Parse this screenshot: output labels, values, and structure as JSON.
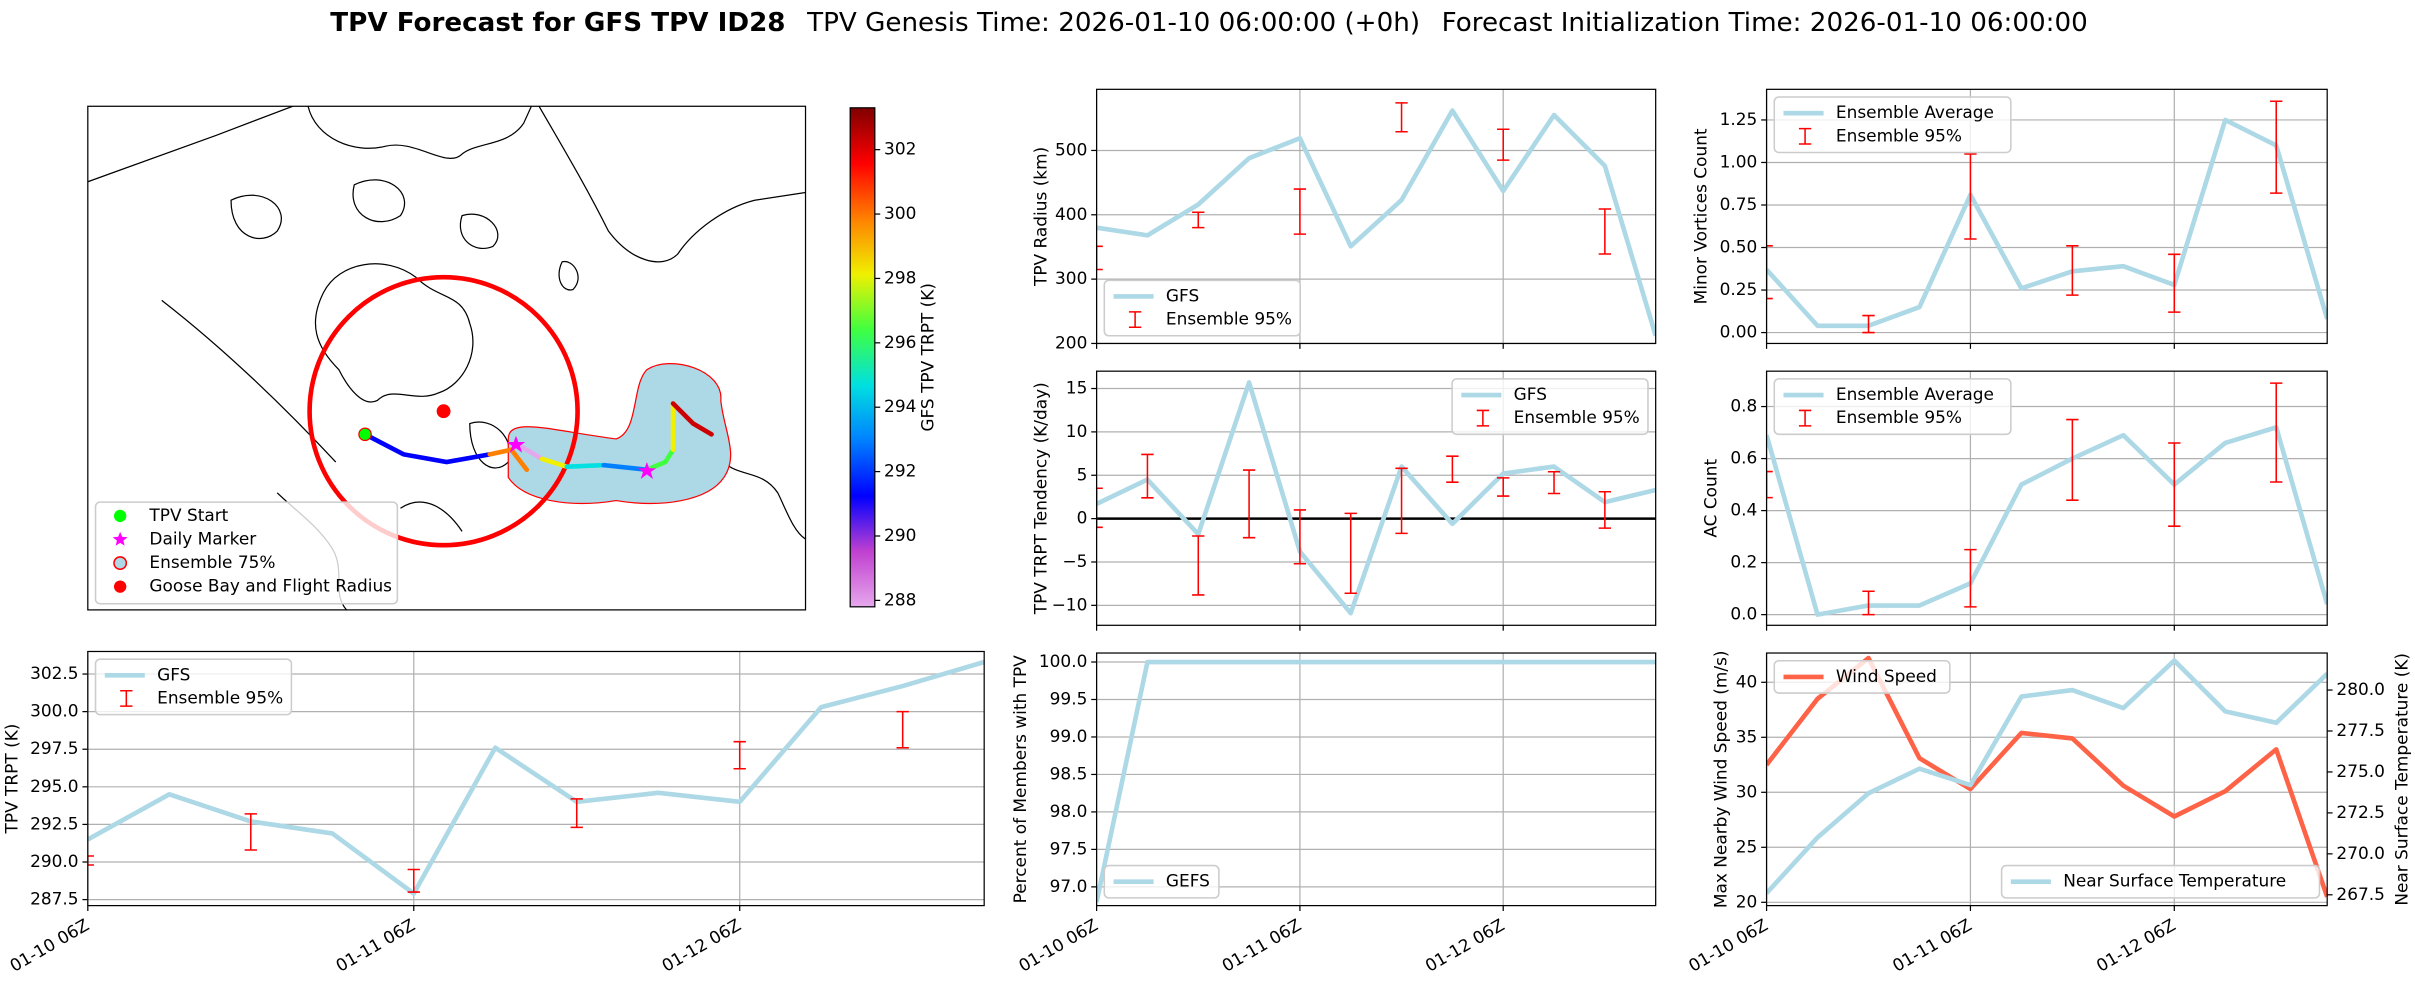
{
  "suptitle": {
    "main": "TPV Forecast for GFS TPV ID28",
    "genesis": "TPV Genesis Time: 2026-01-10 06:00:00 (+0h)",
    "init": "Forecast Initialization Time: 2026-01-10 06:00:00"
  },
  "chart_data": [
    {
      "type": "map",
      "legend": [
        {
          "name": "TPV Start",
          "color": "#00ff00",
          "marker": "circle"
        },
        {
          "name": "Daily Marker",
          "color": "#ff00ff",
          "marker": "star"
        },
        {
          "name": "Ensemble 75%",
          "color": "#add8e6",
          "edge": "#ff0000",
          "marker": "circle"
        },
        {
          "name": "Goose Bay and Flight Radius",
          "color": "#ff0000",
          "marker": "circle"
        }
      ],
      "colorbar": {
        "label": "GFS TPV TRPT (K)",
        "lim": [
          287.8,
          303.3
        ],
        "ticks": [
          288,
          290,
          292,
          294,
          296,
          298,
          300,
          302
        ],
        "colors": [
          "#e6a8ec",
          "#c040d0",
          "#0000ff",
          "#0080ff",
          "#00e0e0",
          "#40ff40",
          "#f0f000",
          "#ff8000",
          "#ff0000",
          "#800000"
        ]
      }
    },
    {
      "type": "line",
      "ylabel": "TPV TRPT (K)",
      "xlim": [
        0,
        66
      ],
      "ylim": [
        287.1,
        304.0
      ],
      "yticks": [
        {
          "value": 287.5,
          "label": "287.5"
        },
        {
          "value": 290,
          "label": "290.0"
        },
        {
          "value": 292.5,
          "label": "292.5"
        },
        {
          "value": 295,
          "label": "295.0"
        },
        {
          "value": 297.5,
          "label": "297.5"
        },
        {
          "value": 300,
          "label": "300.0"
        },
        {
          "value": 302.5,
          "label": "302.5"
        }
      ],
      "xticks": [
        {
          "value": 0,
          "label": "01-10 06Z"
        },
        {
          "value": 24,
          "label": "01-11 06Z"
        },
        {
          "value": 48,
          "label": "01-12 06Z"
        }
      ],
      "grid": true,
      "legend": "upper left",
      "x": [
        0,
        6,
        12,
        18,
        24,
        30,
        36,
        42,
        48,
        54,
        60,
        66
      ],
      "series": [
        {
          "name": "GFS",
          "type": "line",
          "color": "#add8e6",
          "values": [
            291.5,
            294.5,
            292.7,
            291.9,
            287.9,
            297.6,
            294.0,
            294.6,
            294.0,
            300.3,
            301.7,
            303.3
          ]
        },
        {
          "name": "Ensemble 95%",
          "type": "errorbar",
          "color": "#ff0000",
          "x": [
            0,
            12,
            24,
            36,
            48,
            60
          ],
          "lower": [
            289.8,
            290.8,
            288.0,
            292.3,
            296.2,
            297.6
          ],
          "upper": [
            290.4,
            293.2,
            289.5,
            294.2,
            298.0,
            300.0
          ]
        }
      ]
    },
    {
      "type": "line",
      "ylabel": "TPV Radius (km)",
      "xlim": [
        0,
        66
      ],
      "ylim": [
        200,
        595
      ],
      "yticks": [
        200,
        300,
        400,
        500
      ],
      "xticks": [
        0,
        24,
        48
      ],
      "grid": true,
      "legend": "lower left",
      "x": [
        0,
        6,
        12,
        18,
        24,
        30,
        36,
        42,
        48,
        54,
        60,
        66
      ],
      "series": [
        {
          "name": "GFS",
          "type": "line",
          "color": "#add8e6",
          "values": [
            380,
            368,
            416,
            488,
            519,
            351,
            423,
            562,
            437,
            555,
            476,
            212
          ]
        },
        {
          "name": "Ensemble 95%",
          "type": "errorbar",
          "color": "#ff0000",
          "x": [
            0,
            12,
            24,
            36,
            48,
            60
          ],
          "lower": [
            315,
            380,
            370,
            529,
            485,
            339
          ],
          "upper": [
            351,
            404,
            440,
            574,
            533,
            409
          ]
        }
      ]
    },
    {
      "type": "line",
      "ylabel": "TPV TRPT Tendency (K/day)",
      "xlim": [
        0,
        66
      ],
      "ylim": [
        -12.3,
        17
      ],
      "yticks": [
        {
          "value": -10,
          "label": "−10"
        },
        {
          "value": -5,
          "label": "−5"
        },
        0,
        5,
        10,
        15
      ],
      "xticks": [
        0,
        24,
        48
      ],
      "hline": 0,
      "grid": true,
      "legend": "upper right",
      "x": [
        0,
        6,
        12,
        18,
        24,
        30,
        36,
        42,
        48,
        54,
        60,
        66
      ],
      "series": [
        {
          "name": "GFS",
          "type": "line",
          "color": "#add8e6",
          "values": [
            1.7,
            4.5,
            -1.8,
            15.7,
            -3.8,
            -10.9,
            6.0,
            -0.6,
            5.2,
            6.0,
            1.9,
            3.3
          ]
        },
        {
          "name": "Ensemble 95%",
          "type": "errorbar",
          "color": "#ff0000",
          "x": [
            0,
            6,
            12,
            18,
            24,
            30,
            36,
            42,
            48,
            54,
            60
          ],
          "lower": [
            -1.0,
            2.4,
            -8.8,
            -2.2,
            -5.2,
            -8.6,
            -1.7,
            4.2,
            2.6,
            2.9,
            -1.1
          ],
          "upper": [
            3.5,
            7.4,
            -2.0,
            5.6,
            1.0,
            0.6,
            5.8,
            7.2,
            4.7,
            5.4,
            3.1
          ]
        }
      ]
    },
    {
      "type": "line",
      "ylabel": "Percent of Members with TPV",
      "xlim": [
        0,
        66
      ],
      "ylim": [
        96.75,
        100.12
      ],
      "yticks": [
        {
          "value": 97,
          "label": "97.0"
        },
        {
          "value": 97.5,
          "label": "97.5"
        },
        {
          "value": 98,
          "label": "98.0"
        },
        {
          "value": 98.5,
          "label": "98.5"
        },
        {
          "value": 99,
          "label": "99.0"
        },
        {
          "value": 99.5,
          "label": "99.5"
        },
        {
          "value": 100,
          "label": "100.0"
        }
      ],
      "xticks": [
        {
          "value": 0,
          "label": "01-10 06Z"
        },
        {
          "value": 24,
          "label": "01-11 06Z"
        },
        {
          "value": 48,
          "label": "01-12 06Z"
        }
      ],
      "grid": true,
      "legend": "lower left",
      "x": [
        0,
        6,
        12,
        18,
        24,
        30,
        36,
        42,
        48,
        54,
        60,
        66
      ],
      "series": [
        {
          "name": "GEFS",
          "type": "line",
          "color": "#add8e6",
          "values": [
            96.8,
            100,
            100,
            100,
            100,
            100,
            100,
            100,
            100,
            100,
            100,
            100
          ]
        }
      ]
    },
    {
      "type": "line",
      "ylabel": "Minor Vortices Count",
      "xlim": [
        0,
        66
      ],
      "ylim": [
        -0.064,
        1.43
      ],
      "yticks": [
        {
          "value": 0,
          "label": "0.00"
        },
        {
          "value": 0.25,
          "label": "0.25"
        },
        {
          "value": 0.5,
          "label": "0.50"
        },
        {
          "value": 0.75,
          "label": "0.75"
        },
        {
          "value": 1,
          "label": "1.00"
        },
        {
          "value": 1.25,
          "label": "1.25"
        }
      ],
      "xticks": [
        0,
        24,
        48
      ],
      "grid": true,
      "legend": "upper left",
      "x": [
        0,
        6,
        12,
        18,
        24,
        30,
        36,
        42,
        48,
        54,
        60,
        66
      ],
      "series": [
        {
          "name": "Ensemble Average",
          "type": "line",
          "color": "#add8e6",
          "values": [
            0.37,
            0.04,
            0.04,
            0.15,
            0.81,
            0.26,
            0.36,
            0.39,
            0.28,
            1.25,
            1.1,
            0.08
          ]
        },
        {
          "name": "Ensemble 95%",
          "type": "errorbar",
          "color": "#ff0000",
          "x": [
            0,
            12,
            24,
            36,
            48,
            60
          ],
          "lower": [
            0.2,
            0,
            0.55,
            0.22,
            0.12,
            0.82
          ],
          "upper": [
            0.51,
            0.1,
            1.05,
            0.51,
            0.46,
            1.36
          ]
        }
      ]
    },
    {
      "type": "line",
      "ylabel": "AC Count",
      "xlim": [
        0,
        66
      ],
      "ylim": [
        -0.041,
        0.936
      ],
      "yticks": [
        {
          "value": 0,
          "label": "0.0"
        },
        {
          "value": 0.2,
          "label": "0.2"
        },
        {
          "value": 0.4,
          "label": "0.4"
        },
        {
          "value": 0.6,
          "label": "0.6"
        },
        {
          "value": 0.8,
          "label": "0.8"
        }
      ],
      "xticks": [
        0,
        24,
        48
      ],
      "grid": true,
      "legend": "upper left",
      "x": [
        0,
        6,
        12,
        18,
        24,
        30,
        36,
        42,
        48,
        54,
        60,
        66
      ],
      "series": [
        {
          "name": "Ensemble Average",
          "type": "line",
          "color": "#add8e6",
          "values": [
            0.69,
            0,
            0.035,
            0.035,
            0.12,
            0.5,
            0.6,
            0.69,
            0.5,
            0.66,
            0.72,
            0.04
          ]
        },
        {
          "name": "Ensemble 95%",
          "type": "errorbar",
          "color": "#ff0000",
          "x": [
            0,
            12,
            24,
            36,
            48,
            60
          ],
          "lower": [
            0.45,
            0,
            0.03,
            0.44,
            0.34,
            0.51
          ],
          "upper": [
            0.55,
            0.09,
            0.25,
            0.75,
            0.66,
            0.89
          ]
        }
      ]
    },
    {
      "type": "line",
      "ylabel": "Max Nearby Wind Speed (m/s)",
      "ycolor": "#ff6347",
      "y2label": "Near Surface Temperature (K)",
      "y2color": "#4169e1",
      "xlim": [
        0,
        66
      ],
      "ylim": [
        19.7,
        42.66
      ],
      "yticks": [
        20,
        25,
        30,
        35,
        40
      ],
      "y2lim": [
        266.84,
        282.26
      ],
      "y2ticks": [
        {
          "value": 267.5,
          "label": "267.5"
        },
        {
          "value": 270,
          "label": "270.0"
        },
        {
          "value": 272.5,
          "label": "272.5"
        },
        {
          "value": 275,
          "label": "275.0"
        },
        {
          "value": 277.5,
          "label": "277.5"
        },
        {
          "value": 280,
          "label": "280.0"
        }
      ],
      "xticks": [
        {
          "value": 0,
          "label": "01-10 06Z"
        },
        {
          "value": 24,
          "label": "01-11 06Z"
        },
        {
          "value": 48,
          "label": "01-12 06Z"
        }
      ],
      "grid": true,
      "x": [
        0,
        6,
        12,
        18,
        24,
        30,
        36,
        42,
        48,
        54,
        60,
        66
      ],
      "series": [
        {
          "name": "Wind Speed",
          "type": "line",
          "color": "#ff6347",
          "legend": "upper left",
          "values": [
            32.5,
            38.5,
            42.2,
            33.1,
            30.3,
            35.4,
            34.9,
            30.6,
            27.8,
            30.1,
            33.9,
            20.5
          ]
        },
        {
          "name": "Near Surface Temperature",
          "type": "line",
          "color": "#add8e6",
          "axis": "y2",
          "legend": "lower right",
          "values": [
            267.6,
            271.0,
            273.7,
            275.2,
            274.2,
            279.6,
            280.0,
            278.9,
            281.8,
            278.7,
            278.0,
            281.0
          ]
        }
      ]
    }
  ]
}
